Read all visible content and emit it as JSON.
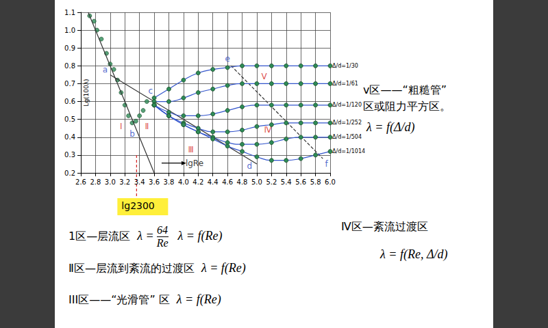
{
  "chart_data": {
    "type": "line",
    "ylabel": "Lg(100λ)",
    "xlim": [
      2.6,
      6.0
    ],
    "xticks": [
      2.6,
      2.8,
      {
        "value": 3.0,
        "label": "3.0"
      },
      3.2,
      3.4,
      3.6,
      3.8,
      {
        "value": 4.0,
        "label": "4.0"
      },
      4.2,
      4.4,
      4.6,
      4.8,
      {
        "value": 5.0,
        "label": "5.0"
      },
      5.2,
      5.4,
      5.6,
      5.8,
      {
        "value": 6.0,
        "label": "6.0"
      }
    ],
    "ylim": [
      0.2,
      1.1
    ],
    "yticks": [
      0.2,
      0.3,
      0.4,
      0.5,
      0.6,
      0.7,
      0.8,
      0.9,
      {
        "value": 1.0,
        "label": "1.0"
      },
      1.1
    ],
    "grid": true,
    "series": [
      {
        "type": "scatter",
        "color": "#2e8b57",
        "marker": "circle",
        "x": [
          2.72,
          2.78,
          2.82,
          2.88,
          2.95,
          3.0,
          3.05,
          3.1,
          3.15,
          3.2,
          3.25,
          3.3,
          3.35,
          3.4,
          3.45,
          3.5
        ],
        "values": [
          1.08,
          1.05,
          1.0,
          0.95,
          0.87,
          0.81,
          0.78,
          0.72,
          0.65,
          0.58,
          0.52,
          0.48,
          0.49,
          0.52,
          0.55,
          0.6
        ]
      },
      {
        "type": "line",
        "color": "#333333",
        "marker": "none",
        "line_style": "solid",
        "x": [
          2.7,
          3.6
        ],
        "values": [
          1.1,
          0.2
        ]
      },
      {
        "type": "line",
        "color": "#333333",
        "marker": "none",
        "line_style": "solid",
        "x": [
          3.0,
          5.0
        ],
        "values": [
          0.75,
          0.25
        ]
      },
      {
        "type": "line",
        "color": "#333333",
        "marker": "none",
        "line_style": "dashed",
        "x": [
          4.65,
          5.9
        ],
        "values": [
          0.8,
          0.28
        ]
      },
      {
        "type": "line",
        "name": "Δ/d=1/30",
        "color": "#3355cc",
        "marker": "circle",
        "line_style": "solid",
        "x": [
          3.6,
          3.8,
          4.0,
          4.2,
          4.4,
          4.6,
          4.8,
          5.0,
          5.2,
          5.4,
          5.6,
          5.8,
          6.0
        ],
        "values": [
          0.62,
          0.67,
          0.72,
          0.76,
          0.78,
          0.79,
          0.8,
          0.8,
          0.8,
          0.8,
          0.8,
          0.8,
          0.8
        ]
      },
      {
        "type": "line",
        "name": "Δ/d=1/61",
        "color": "#3355cc",
        "marker": "circle",
        "line_style": "solid",
        "x": [
          3.6,
          3.8,
          4.0,
          4.2,
          4.4,
          4.6,
          4.8,
          5.0,
          5.2,
          5.4,
          5.6,
          5.8,
          6.0
        ],
        "values": [
          0.6,
          0.6,
          0.62,
          0.65,
          0.67,
          0.69,
          0.7,
          0.7,
          0.7,
          0.7,
          0.7,
          0.7,
          0.7
        ]
      },
      {
        "type": "line",
        "name": "Δ/d=1/120",
        "color": "#3355cc",
        "marker": "circle",
        "line_style": "solid",
        "x": [
          3.6,
          3.8,
          4.0,
          4.2,
          4.4,
          4.6,
          4.8,
          5.0,
          5.2,
          5.4,
          5.6,
          5.8,
          6.0
        ],
        "values": [
          0.58,
          0.54,
          0.52,
          0.52,
          0.53,
          0.55,
          0.57,
          0.58,
          0.58,
          0.58,
          0.58,
          0.58,
          0.58
        ]
      },
      {
        "type": "line",
        "name": "Δ/d=1/252",
        "color": "#3355cc",
        "marker": "circle",
        "line_style": "solid",
        "x": [
          3.6,
          3.8,
          4.0,
          4.2,
          4.4,
          4.6,
          4.8,
          5.0,
          5.2,
          5.4,
          5.6,
          5.8,
          6.0
        ],
        "values": [
          0.58,
          0.52,
          0.48,
          0.45,
          0.43,
          0.43,
          0.44,
          0.46,
          0.47,
          0.48,
          0.48,
          0.48,
          0.48
        ]
      },
      {
        "type": "line",
        "name": "Δ/d=1/504",
        "color": "#3355cc",
        "marker": "circle",
        "line_style": "solid",
        "x": [
          3.6,
          3.8,
          4.0,
          4.2,
          4.4,
          4.6,
          4.8,
          5.0,
          5.2,
          5.4,
          5.6,
          5.8,
          6.0
        ],
        "values": [
          0.58,
          0.52,
          0.47,
          0.43,
          0.4,
          0.37,
          0.36,
          0.36,
          0.37,
          0.39,
          0.4,
          0.4,
          0.4
        ]
      },
      {
        "type": "line",
        "name": "Δ/d=1/1014",
        "color": "#3355cc",
        "marker": "circle",
        "line_style": "solid",
        "x": [
          3.6,
          3.8,
          4.0,
          4.2,
          4.4,
          4.6,
          4.8,
          5.0,
          5.2,
          5.4,
          5.6,
          5.8,
          6.0
        ],
        "values": [
          0.58,
          0.52,
          0.47,
          0.43,
          0.39,
          0.35,
          0.32,
          0.29,
          0.27,
          0.27,
          0.28,
          0.3,
          0.32
        ]
      }
    ],
    "annotations": [
      {
        "text": "a",
        "x": 2.93,
        "y": 0.78,
        "color": "#1f3fbf"
      },
      {
        "text": "b",
        "x": 3.3,
        "y": 0.42,
        "color": "#1f3fbf"
      },
      {
        "text": "c",
        "x": 3.55,
        "y": 0.66,
        "color": "#1f3fbf"
      },
      {
        "text": "d",
        "x": 4.9,
        "y": 0.24,
        "color": "#1f3fbf"
      },
      {
        "text": "e",
        "x": 4.6,
        "y": 0.84,
        "color": "#1f3fbf"
      },
      {
        "text": "f",
        "x": 5.95,
        "y": 0.25,
        "color": "#1f3fbf"
      },
      {
        "text": "Ⅰ",
        "x": 3.15,
        "y": 0.46,
        "color": "#d42020"
      },
      {
        "text": "Ⅱ",
        "x": 3.5,
        "y": 0.46,
        "color": "#d42020"
      },
      {
        "text": "Ⅲ",
        "x": 4.1,
        "y": 0.33,
        "color": "#d42020"
      },
      {
        "text": "Ⅳ",
        "x": 5.15,
        "y": 0.44,
        "color": "#d42020"
      },
      {
        "text": "Ⅴ",
        "x": 5.1,
        "y": 0.74,
        "color": "#d42020"
      },
      {
        "text": "lgRe",
        "x": 4.15,
        "y": 0.255,
        "color": "#000000",
        "arrow": true
      }
    ],
    "reference_line": {
      "x": 3.36,
      "label": "lg2300",
      "color": "#d42020"
    }
  },
  "notes": {
    "right": {
      "lines": [
        "v区——“粗糙管”",
        "区或阻力平方区。"
      ],
      "formula": "λ = f(Δ/d)"
    },
    "items": [
      {
        "parts": [
          "1区—层流区",
          "λ =",
          {
            "num": "64",
            "den": "Re"
          },
          "λ = f(Re)"
        ]
      },
      {
        "parts": [
          "Ⅱ区—层流到紊流的过渡区",
          "λ = f(Re)"
        ]
      },
      {
        "parts": [
          "III区——“光滑管” 区",
          "λ = f(Re)"
        ]
      },
      {
        "parts": [
          "Ⅳ区—紊流过渡区"
        ]
      },
      {
        "parts": [
          "λ = f(Re, Δ/d)"
        ]
      }
    ]
  }
}
